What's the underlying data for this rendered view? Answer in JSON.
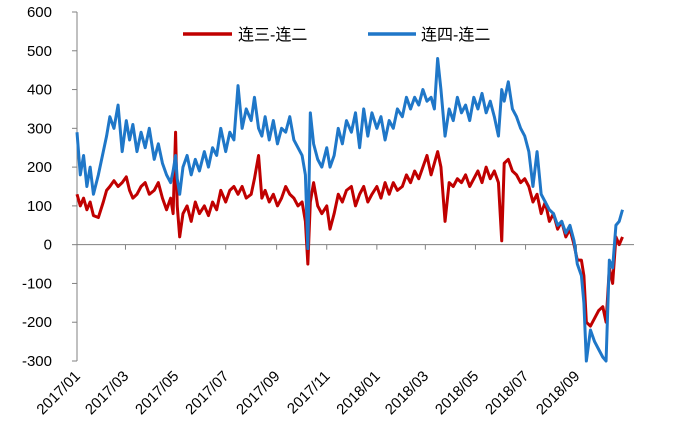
{
  "chart_data": {
    "type": "line",
    "title": "",
    "xlabel": "",
    "ylabel": "",
    "ylim": [
      -300,
      600
    ],
    "yticks": [
      600,
      500,
      400,
      300,
      200,
      100,
      0,
      -100,
      -200,
      -300
    ],
    "xticks": [
      "2017/01",
      "2017/03",
      "2017/05",
      "2017/07",
      "2017/09",
      "2017/11",
      "2018/01",
      "2018/03",
      "2018/05",
      "2018/07",
      "2018/09"
    ],
    "xlim": [
      "2017-01-01",
      "2018-11-10"
    ],
    "grid": false,
    "legend": "top",
    "colors": {
      "series1": "#C00000",
      "series2": "#1F77C8",
      "axis": "#808080"
    },
    "series": [
      {
        "name": "连三-连二",
        "points": [
          [
            "2017-01-01",
            130
          ],
          [
            "2017-01-05",
            100
          ],
          [
            "2017-01-09",
            120
          ],
          [
            "2017-01-13",
            90
          ],
          [
            "2017-01-17",
            110
          ],
          [
            "2017-01-21",
            75
          ],
          [
            "2017-01-27",
            70
          ],
          [
            "2017-02-02",
            110
          ],
          [
            "2017-02-06",
            140
          ],
          [
            "2017-02-10",
            150
          ],
          [
            "2017-02-15",
            165
          ],
          [
            "2017-02-20",
            150
          ],
          [
            "2017-02-25",
            160
          ],
          [
            "2017-03-02",
            175
          ],
          [
            "2017-03-06",
            140
          ],
          [
            "2017-03-10",
            120
          ],
          [
            "2017-03-15",
            130
          ],
          [
            "2017-03-20",
            150
          ],
          [
            "2017-03-25",
            160
          ],
          [
            "2017-03-30",
            130
          ],
          [
            "2017-04-05",
            140
          ],
          [
            "2017-04-10",
            160
          ],
          [
            "2017-04-15",
            120
          ],
          [
            "2017-04-20",
            90
          ],
          [
            "2017-04-25",
            120
          ],
          [
            "2017-04-28",
            80
          ],
          [
            "2017-05-01",
            290
          ],
          [
            "2017-05-03",
            100
          ],
          [
            "2017-05-06",
            20
          ],
          [
            "2017-05-10",
            80
          ],
          [
            "2017-05-15",
            100
          ],
          [
            "2017-05-20",
            60
          ],
          [
            "2017-05-25",
            110
          ],
          [
            "2017-05-30",
            80
          ],
          [
            "2017-06-05",
            100
          ],
          [
            "2017-06-10",
            75
          ],
          [
            "2017-06-15",
            110
          ],
          [
            "2017-06-20",
            90
          ],
          [
            "2017-06-25",
            140
          ],
          [
            "2017-07-01",
            110
          ],
          [
            "2017-07-06",
            140
          ],
          [
            "2017-07-11",
            150
          ],
          [
            "2017-07-16",
            130
          ],
          [
            "2017-07-21",
            150
          ],
          [
            "2017-07-26",
            120
          ],
          [
            "2017-08-01",
            130
          ],
          [
            "2017-08-05",
            170
          ],
          [
            "2017-08-10",
            230
          ],
          [
            "2017-08-14",
            120
          ],
          [
            "2017-08-18",
            140
          ],
          [
            "2017-08-23",
            110
          ],
          [
            "2017-08-28",
            130
          ],
          [
            "2017-09-02",
            100
          ],
          [
            "2017-09-07",
            120
          ],
          [
            "2017-09-12",
            150
          ],
          [
            "2017-09-17",
            130
          ],
          [
            "2017-09-22",
            120
          ],
          [
            "2017-09-27",
            100
          ],
          [
            "2017-10-02",
            110
          ],
          [
            "2017-10-06",
            60
          ],
          [
            "2017-10-09",
            -50
          ],
          [
            "2017-10-12",
            110
          ],
          [
            "2017-10-16",
            160
          ],
          [
            "2017-10-21",
            100
          ],
          [
            "2017-10-26",
            80
          ],
          [
            "2017-11-01",
            100
          ],
          [
            "2017-11-05",
            40
          ],
          [
            "2017-11-10",
            80
          ],
          [
            "2017-11-15",
            130
          ],
          [
            "2017-11-20",
            110
          ],
          [
            "2017-11-25",
            140
          ],
          [
            "2017-12-01",
            150
          ],
          [
            "2017-12-06",
            100
          ],
          [
            "2017-12-11",
            130
          ],
          [
            "2017-12-16",
            150
          ],
          [
            "2017-12-21",
            110
          ],
          [
            "2017-12-26",
            130
          ],
          [
            "2018-01-01",
            150
          ],
          [
            "2018-01-06",
            120
          ],
          [
            "2018-01-11",
            160
          ],
          [
            "2018-01-16",
            130
          ],
          [
            "2018-01-21",
            160
          ],
          [
            "2018-01-26",
            140
          ],
          [
            "2018-02-01",
            150
          ],
          [
            "2018-02-06",
            180
          ],
          [
            "2018-02-11",
            160
          ],
          [
            "2018-02-16",
            190
          ],
          [
            "2018-02-21",
            170
          ],
          [
            "2018-02-26",
            200
          ],
          [
            "2018-03-03",
            230
          ],
          [
            "2018-03-08",
            180
          ],
          [
            "2018-03-12",
            210
          ],
          [
            "2018-03-16",
            240
          ],
          [
            "2018-03-20",
            200
          ],
          [
            "2018-03-25",
            60
          ],
          [
            "2018-03-30",
            160
          ],
          [
            "2018-04-04",
            150
          ],
          [
            "2018-04-09",
            170
          ],
          [
            "2018-04-14",
            160
          ],
          [
            "2018-04-19",
            180
          ],
          [
            "2018-04-24",
            150
          ],
          [
            "2018-04-29",
            170
          ],
          [
            "2018-05-04",
            190
          ],
          [
            "2018-05-09",
            160
          ],
          [
            "2018-05-14",
            200
          ],
          [
            "2018-05-19",
            170
          ],
          [
            "2018-05-24",
            190
          ],
          [
            "2018-05-29",
            160
          ],
          [
            "2018-06-02",
            10
          ],
          [
            "2018-06-05",
            210
          ],
          [
            "2018-06-10",
            220
          ],
          [
            "2018-06-15",
            190
          ],
          [
            "2018-06-20",
            180
          ],
          [
            "2018-06-25",
            160
          ],
          [
            "2018-06-30",
            170
          ],
          [
            "2018-07-05",
            150
          ],
          [
            "2018-07-10",
            110
          ],
          [
            "2018-07-15",
            130
          ],
          [
            "2018-07-20",
            80
          ],
          [
            "2018-07-25",
            110
          ],
          [
            "2018-07-30",
            60
          ],
          [
            "2018-08-04",
            80
          ],
          [
            "2018-08-09",
            40
          ],
          [
            "2018-08-14",
            60
          ],
          [
            "2018-08-19",
            20
          ],
          [
            "2018-08-24",
            40
          ],
          [
            "2018-08-29",
            0
          ],
          [
            "2018-09-02",
            -40
          ],
          [
            "2018-09-07",
            -40
          ],
          [
            "2018-09-10",
            -80
          ],
          [
            "2018-09-13",
            -200
          ],
          [
            "2018-09-18",
            -210
          ],
          [
            "2018-09-23",
            -190
          ],
          [
            "2018-09-28",
            -170
          ],
          [
            "2018-10-03",
            -160
          ],
          [
            "2018-10-07",
            -200
          ],
          [
            "2018-10-11",
            -60
          ],
          [
            "2018-10-15",
            -100
          ],
          [
            "2018-10-19",
            20
          ],
          [
            "2018-10-23",
            0
          ],
          [
            "2018-10-27",
            20
          ]
        ]
      },
      {
        "name": "连四-连二",
        "points": [
          [
            "2017-01-01",
            290
          ],
          [
            "2017-01-05",
            180
          ],
          [
            "2017-01-09",
            230
          ],
          [
            "2017-01-13",
            150
          ],
          [
            "2017-01-17",
            200
          ],
          [
            "2017-01-21",
            130
          ],
          [
            "2017-01-27",
            180
          ],
          [
            "2017-02-02",
            240
          ],
          [
            "2017-02-06",
            280
          ],
          [
            "2017-02-10",
            330
          ],
          [
            "2017-02-15",
            300
          ],
          [
            "2017-02-20",
            360
          ],
          [
            "2017-02-25",
            240
          ],
          [
            "2017-03-02",
            320
          ],
          [
            "2017-03-06",
            270
          ],
          [
            "2017-03-10",
            310
          ],
          [
            "2017-03-15",
            240
          ],
          [
            "2017-03-20",
            290
          ],
          [
            "2017-03-25",
            250
          ],
          [
            "2017-03-30",
            300
          ],
          [
            "2017-04-05",
            220
          ],
          [
            "2017-04-10",
            260
          ],
          [
            "2017-04-15",
            210
          ],
          [
            "2017-04-20",
            180
          ],
          [
            "2017-04-25",
            160
          ],
          [
            "2017-04-28",
            190
          ],
          [
            "2017-05-01",
            230
          ],
          [
            "2017-05-03",
            170
          ],
          [
            "2017-05-06",
            130
          ],
          [
            "2017-05-10",
            200
          ],
          [
            "2017-05-15",
            230
          ],
          [
            "2017-05-20",
            180
          ],
          [
            "2017-05-25",
            220
          ],
          [
            "2017-05-30",
            190
          ],
          [
            "2017-06-05",
            240
          ],
          [
            "2017-06-10",
            200
          ],
          [
            "2017-06-15",
            250
          ],
          [
            "2017-06-20",
            230
          ],
          [
            "2017-06-25",
            300
          ],
          [
            "2017-07-01",
            240
          ],
          [
            "2017-07-06",
            290
          ],
          [
            "2017-07-11",
            270
          ],
          [
            "2017-07-16",
            410
          ],
          [
            "2017-07-21",
            300
          ],
          [
            "2017-07-26",
            350
          ],
          [
            "2017-08-01",
            320
          ],
          [
            "2017-08-05",
            380
          ],
          [
            "2017-08-10",
            300
          ],
          [
            "2017-08-14",
            280
          ],
          [
            "2017-08-18",
            330
          ],
          [
            "2017-08-23",
            270
          ],
          [
            "2017-08-28",
            320
          ],
          [
            "2017-09-02",
            260
          ],
          [
            "2017-09-07",
            300
          ],
          [
            "2017-09-12",
            290
          ],
          [
            "2017-09-17",
            330
          ],
          [
            "2017-09-22",
            270
          ],
          [
            "2017-09-27",
            250
          ],
          [
            "2017-10-02",
            230
          ],
          [
            "2017-10-06",
            180
          ],
          [
            "2017-10-09",
            -10
          ],
          [
            "2017-10-12",
            340
          ],
          [
            "2017-10-16",
            260
          ],
          [
            "2017-10-21",
            220
          ],
          [
            "2017-10-26",
            200
          ],
          [
            "2017-11-01",
            250
          ],
          [
            "2017-11-05",
            200
          ],
          [
            "2017-11-10",
            230
          ],
          [
            "2017-11-15",
            300
          ],
          [
            "2017-11-20",
            260
          ],
          [
            "2017-11-25",
            320
          ],
          [
            "2017-12-01",
            290
          ],
          [
            "2017-12-06",
            340
          ],
          [
            "2017-12-11",
            250
          ],
          [
            "2017-12-16",
            350
          ],
          [
            "2017-12-21",
            280
          ],
          [
            "2017-12-26",
            340
          ],
          [
            "2018-01-01",
            300
          ],
          [
            "2018-01-06",
            330
          ],
          [
            "2018-01-11",
            270
          ],
          [
            "2018-01-16",
            320
          ],
          [
            "2018-01-21",
            300
          ],
          [
            "2018-01-26",
            350
          ],
          [
            "2018-02-01",
            330
          ],
          [
            "2018-02-06",
            380
          ],
          [
            "2018-02-11",
            350
          ],
          [
            "2018-02-16",
            380
          ],
          [
            "2018-02-21",
            360
          ],
          [
            "2018-02-26",
            400
          ],
          [
            "2018-03-03",
            370
          ],
          [
            "2018-03-08",
            380
          ],
          [
            "2018-03-12",
            350
          ],
          [
            "2018-03-16",
            480
          ],
          [
            "2018-03-20",
            400
          ],
          [
            "2018-03-25",
            280
          ],
          [
            "2018-03-30",
            350
          ],
          [
            "2018-04-04",
            320
          ],
          [
            "2018-04-09",
            380
          ],
          [
            "2018-04-14",
            340
          ],
          [
            "2018-04-19",
            360
          ],
          [
            "2018-04-24",
            320
          ],
          [
            "2018-04-29",
            380
          ],
          [
            "2018-05-04",
            350
          ],
          [
            "2018-05-09",
            390
          ],
          [
            "2018-05-14",
            340
          ],
          [
            "2018-05-19",
            370
          ],
          [
            "2018-05-24",
            330
          ],
          [
            "2018-05-29",
            280
          ],
          [
            "2018-06-02",
            400
          ],
          [
            "2018-06-05",
            370
          ],
          [
            "2018-06-10",
            420
          ],
          [
            "2018-06-15",
            350
          ],
          [
            "2018-06-20",
            330
          ],
          [
            "2018-06-25",
            300
          ],
          [
            "2018-06-30",
            280
          ],
          [
            "2018-07-05",
            240
          ],
          [
            "2018-07-10",
            150
          ],
          [
            "2018-07-15",
            240
          ],
          [
            "2018-07-20",
            130
          ],
          [
            "2018-07-25",
            110
          ],
          [
            "2018-07-30",
            90
          ],
          [
            "2018-08-04",
            80
          ],
          [
            "2018-08-09",
            50
          ],
          [
            "2018-08-14",
            60
          ],
          [
            "2018-08-19",
            30
          ],
          [
            "2018-08-24",
            50
          ],
          [
            "2018-08-29",
            10
          ],
          [
            "2018-09-02",
            -50
          ],
          [
            "2018-09-07",
            -80
          ],
          [
            "2018-09-10",
            -150
          ],
          [
            "2018-09-13",
            -300
          ],
          [
            "2018-09-18",
            -220
          ],
          [
            "2018-09-23",
            -250
          ],
          [
            "2018-09-28",
            -270
          ],
          [
            "2018-10-03",
            -290
          ],
          [
            "2018-10-07",
            -300
          ],
          [
            "2018-10-11",
            -40
          ],
          [
            "2018-10-15",
            -60
          ],
          [
            "2018-10-19",
            50
          ],
          [
            "2018-10-23",
            60
          ],
          [
            "2018-10-27",
            90
          ]
        ]
      }
    ]
  }
}
